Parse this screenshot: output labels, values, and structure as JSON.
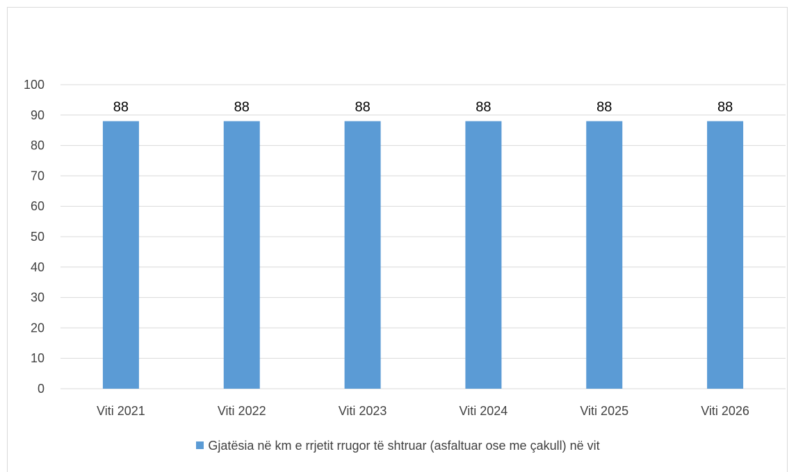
{
  "chart_data": {
    "type": "bar",
    "categories": [
      "Viti 2021",
      "Viti 2022",
      "Viti 2023",
      "Viti 2024",
      "Viti 2025",
      "Viti 2026"
    ],
    "series": [
      {
        "name": "Gjatësia në km e rrjetit rrugor të shtruar (asfaltuar ose me çakull) në vit",
        "values": [
          88,
          88,
          88,
          88,
          88,
          88
        ]
      }
    ],
    "data_labels": [
      "88",
      "88",
      "88",
      "88",
      "88",
      "88"
    ],
    "yticks": [
      "0",
      "10",
      "20",
      "30",
      "40",
      "50",
      "60",
      "70",
      "80",
      "90",
      "100"
    ],
    "ylim": [
      0,
      100
    ],
    "grid": true,
    "legend_position": "bottom",
    "colors": {
      "bar": "#5b9bd5",
      "grid": "#d9d9d9",
      "text": "#404040",
      "label": "#000000"
    }
  }
}
